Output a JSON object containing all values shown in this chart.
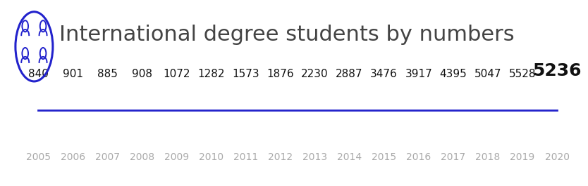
{
  "title": "International degree students by numbers",
  "years": [
    2005,
    2006,
    2007,
    2008,
    2009,
    2010,
    2011,
    2012,
    2013,
    2014,
    2015,
    2016,
    2017,
    2018,
    2019,
    2020
  ],
  "values": [
    840,
    901,
    885,
    908,
    1072,
    1282,
    1573,
    1876,
    2230,
    2887,
    3476,
    3917,
    4395,
    5047,
    5528,
    5236
  ],
  "line_color": "#2222cc",
  "title_color": "#444444",
  "value_color": "#111111",
  "year_color": "#aaaaaa",
  "last_value_fontsize": 18,
  "value_fontsize": 11,
  "year_fontsize": 10,
  "title_fontsize": 22,
  "bg_color": "#ffffff",
  "icon_color": "#2222cc"
}
